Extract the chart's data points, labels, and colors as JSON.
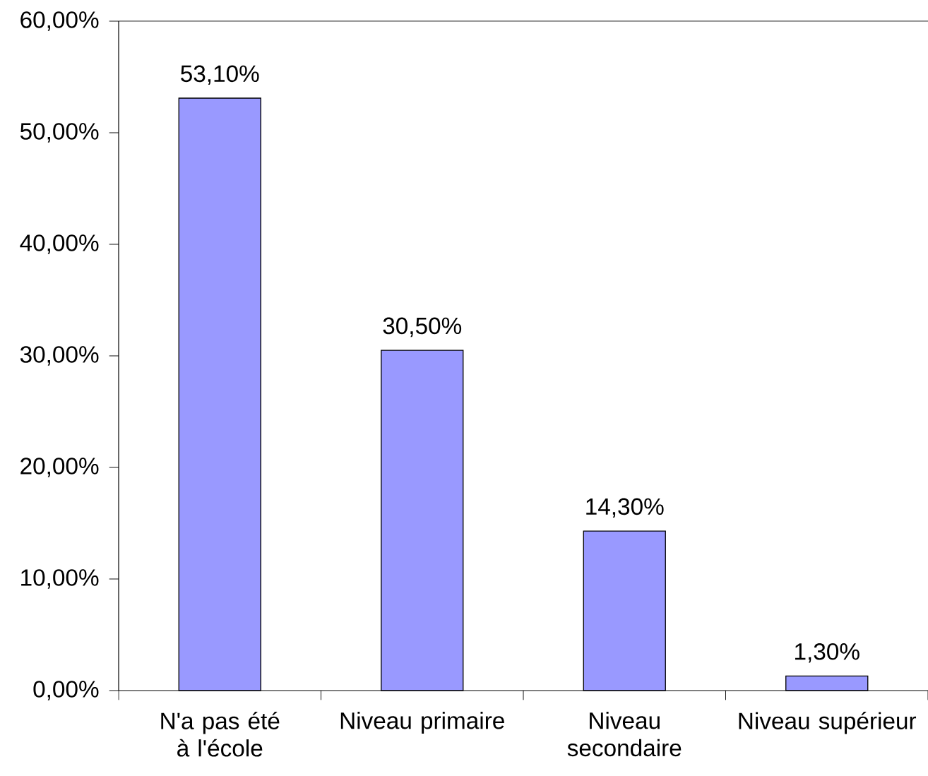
{
  "chart_data": {
    "type": "bar",
    "categories": [
      "N'a pas été à l'école",
      "Niveau primaire",
      "Niveau secondaire",
      "Niveau supérieur"
    ],
    "values": [
      53.1,
      30.5,
      14.3,
      1.3
    ],
    "value_labels": [
      "53,10%",
      "30,50%",
      "14,30%",
      "1,30%"
    ],
    "color": "#9999ff",
    "ylim": [
      0,
      60
    ],
    "yticks": [
      {
        "value": 0,
        "label": "0,00%"
      },
      {
        "value": 10,
        "label": "10,00%"
      },
      {
        "value": 20,
        "label": "20,00%"
      },
      {
        "value": 30,
        "label": "30,00%"
      },
      {
        "value": 40,
        "label": "40,00%"
      },
      {
        "value": 50,
        "label": "50,00%"
      },
      {
        "value": 60,
        "label": "60,00%"
      }
    ],
    "grid": false
  }
}
